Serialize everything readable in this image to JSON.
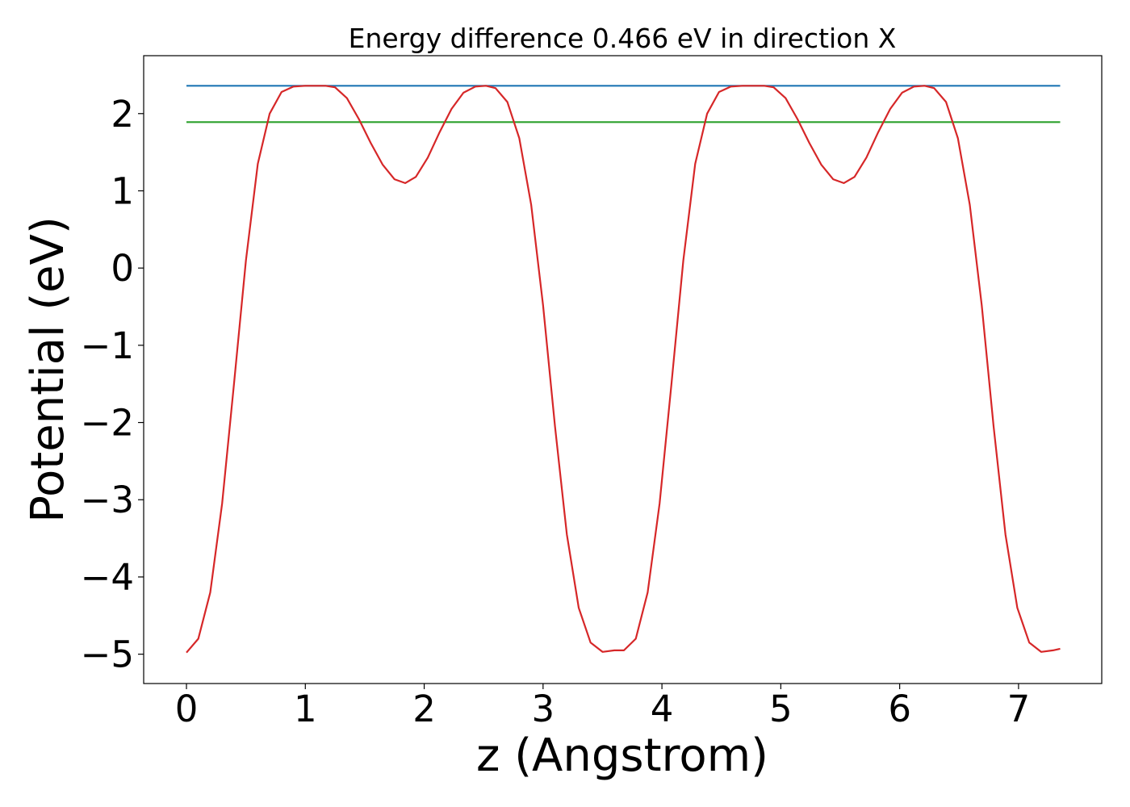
{
  "chart_data": {
    "type": "line",
    "title": "Energy difference 0.466 eV in direction X",
    "xlabel": "z (Angstrom)",
    "ylabel": "Potential (eV)",
    "xlim": [
      -0.36,
      7.7
    ],
    "ylim": [
      -5.38,
      2.75
    ],
    "xticks": [
      0,
      1,
      2,
      3,
      4,
      5,
      6,
      7
    ],
    "xtick_labels": [
      "0",
      "1",
      "2",
      "3",
      "4",
      "5",
      "6",
      "7"
    ],
    "yticks": [
      -5,
      -4,
      -3,
      -2,
      -1,
      0,
      1,
      2
    ],
    "ytick_labels": [
      "−5",
      "−4",
      "−3",
      "−2",
      "−1",
      "0",
      "1",
      "2"
    ],
    "grid": false,
    "series": [
      {
        "color": "#1f77b4",
        "x": [
          0.0,
          7.35
        ],
        "y": [
          2.36,
          2.36
        ]
      },
      {
        "color": "#2ca02c",
        "x": [
          0.0,
          7.35
        ],
        "y": [
          1.89,
          1.89
        ]
      },
      {
        "color": "#d62728",
        "x": [
          0.0,
          0.1,
          0.2,
          0.3,
          0.4,
          0.5,
          0.6,
          0.7,
          0.8,
          0.9,
          1.0,
          1.1,
          1.17,
          1.25,
          1.35,
          1.45,
          1.55,
          1.65,
          1.75,
          1.84,
          1.93,
          2.03,
          2.13,
          2.23,
          2.33,
          2.43,
          2.52,
          2.6,
          2.7,
          2.8,
          2.9,
          3.0,
          3.1,
          3.2,
          3.3,
          3.4,
          3.5,
          3.6,
          3.68,
          3.78,
          3.88,
          3.98,
          4.08,
          4.18,
          4.28,
          4.38,
          4.48,
          4.58,
          4.68,
          4.78,
          4.86,
          4.94,
          5.04,
          5.14,
          5.24,
          5.34,
          5.44,
          5.53,
          5.62,
          5.72,
          5.82,
          5.92,
          6.02,
          6.12,
          6.21,
          6.29,
          6.39,
          6.49,
          6.59,
          6.69,
          6.79,
          6.89,
          6.99,
          7.09,
          7.19,
          7.29,
          7.35
        ],
        "y": [
          -4.98,
          -4.8,
          -4.2,
          -3.05,
          -1.5,
          0.1,
          1.35,
          2.0,
          2.28,
          2.35,
          2.36,
          2.36,
          2.36,
          2.34,
          2.2,
          1.93,
          1.62,
          1.34,
          1.15,
          1.1,
          1.18,
          1.43,
          1.76,
          2.06,
          2.27,
          2.35,
          2.36,
          2.33,
          2.15,
          1.68,
          0.82,
          -0.48,
          -2.05,
          -3.45,
          -4.4,
          -4.85,
          -4.97,
          -4.95,
          -4.95,
          -4.8,
          -4.2,
          -3.05,
          -1.5,
          0.1,
          1.35,
          2.0,
          2.28,
          2.35,
          2.36,
          2.36,
          2.36,
          2.34,
          2.2,
          1.93,
          1.62,
          1.34,
          1.15,
          1.1,
          1.18,
          1.43,
          1.76,
          2.06,
          2.27,
          2.35,
          2.36,
          2.33,
          2.15,
          1.68,
          0.82,
          -0.48,
          -2.05,
          -3.45,
          -4.4,
          -4.85,
          -4.97,
          -4.95,
          -4.93
        ]
      }
    ]
  }
}
